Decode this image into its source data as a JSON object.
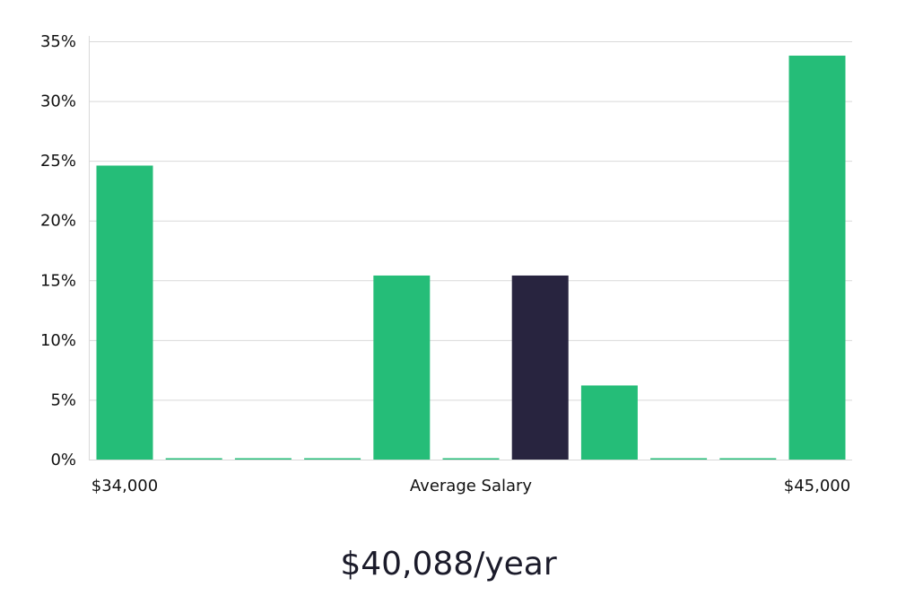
{
  "chart_data": {
    "type": "bar",
    "title": "",
    "xlabel": "Average Salary",
    "ylabel": "",
    "x_range_labels": {
      "min": "$34,000",
      "max": "$45,000"
    },
    "bins": 11,
    "values": [
      24.6,
      0,
      0,
      0,
      15.4,
      0,
      15.4,
      6.2,
      0,
      0,
      33.8
    ],
    "highlight_index": 6,
    "y_ticks": [
      0,
      5,
      10,
      15,
      20,
      25,
      30,
      35
    ],
    "y_tick_labels": [
      "0%",
      "5%",
      "10%",
      "15%",
      "20%",
      "25%",
      "30%",
      "35%"
    ],
    "ylim": [
      0,
      35
    ],
    "grid": true,
    "colors": {
      "bar": "#25bd78",
      "highlight": "#28243f",
      "grid": "#d9d9d9"
    }
  },
  "summary": {
    "salary_text": "$40,088/year"
  }
}
